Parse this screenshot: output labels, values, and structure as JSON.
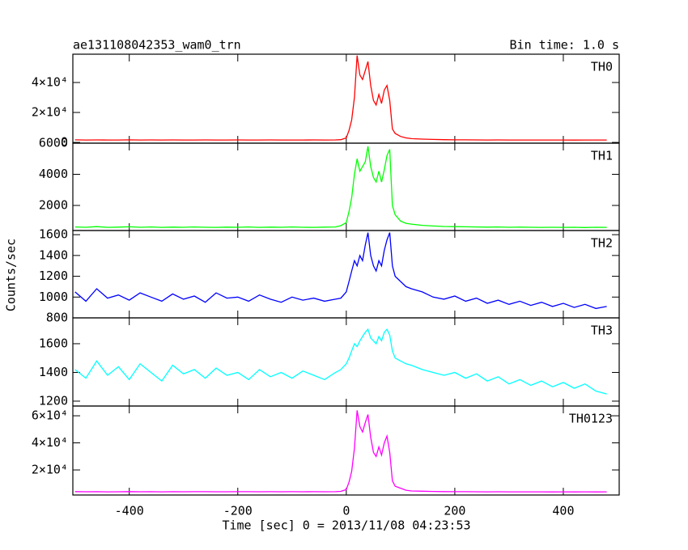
{
  "chart_data": [
    {
      "type": "line",
      "title": "ae131108042353_wam0_trn",
      "subtitle": "Bin time: 1.0 s",
      "x": [
        -500,
        -480,
        -460,
        -440,
        -420,
        -400,
        -380,
        -360,
        -340,
        -320,
        -300,
        -280,
        -260,
        -240,
        -220,
        -200,
        -180,
        -160,
        -140,
        -120,
        -100,
        -80,
        -60,
        -40,
        -20,
        -10,
        0,
        5,
        10,
        15,
        20,
        25,
        30,
        35,
        40,
        45,
        50,
        55,
        60,
        65,
        70,
        75,
        80,
        85,
        90,
        100,
        110,
        120,
        140,
        160,
        180,
        200,
        220,
        240,
        260,
        280,
        300,
        320,
        340,
        360,
        380,
        400,
        420,
        440,
        460,
        480
      ],
      "series": [
        {
          "name": "TH0",
          "color": "#ff0000",
          "values": [
            1700,
            1600,
            1650,
            1580,
            1620,
            1700,
            1600,
            1640,
            1580,
            1660,
            1600,
            1620,
            1650,
            1580,
            1600,
            1640,
            1620,
            1580,
            1650,
            1600,
            1620,
            1580,
            1640,
            1600,
            1650,
            1800,
            3000,
            8000,
            15000,
            30000,
            58000,
            45000,
            42000,
            48000,
            54000,
            38000,
            28000,
            25000,
            32000,
            26000,
            35000,
            38000,
            28000,
            9000,
            6000,
            4000,
            3000,
            2500,
            2200,
            2000,
            1800,
            1700,
            1700,
            1650,
            1600,
            1650,
            1600,
            1580,
            1620,
            1600,
            1580,
            1600,
            1550,
            1600,
            1580,
            1600
          ]
        }
      ],
      "xlim": [
        -504,
        503
      ],
      "ylim": [
        -500,
        58900
      ],
      "yticks": [
        0,
        {
          "value": 20000,
          "label": "2×10⁴"
        },
        {
          "value": 40000,
          "label": "4×10⁴"
        }
      ]
    },
    {
      "type": "line",
      "x": [
        -500,
        -480,
        -460,
        -440,
        -420,
        -400,
        -380,
        -360,
        -340,
        -320,
        -300,
        -280,
        -260,
        -240,
        -220,
        -200,
        -180,
        -160,
        -140,
        -120,
        -100,
        -80,
        -60,
        -40,
        -20,
        -10,
        0,
        5,
        10,
        15,
        20,
        25,
        30,
        35,
        40,
        45,
        50,
        55,
        60,
        65,
        70,
        75,
        80,
        85,
        90,
        100,
        110,
        120,
        140,
        160,
        180,
        200,
        220,
        240,
        260,
        280,
        300,
        320,
        340,
        360,
        380,
        400,
        420,
        440,
        460,
        480
      ],
      "series": [
        {
          "name": "TH1",
          "color": "#00ff00",
          "values": [
            620,
            600,
            640,
            590,
            610,
            630,
            600,
            620,
            590,
            610,
            600,
            620,
            600,
            590,
            610,
            600,
            620,
            590,
            610,
            600,
            620,
            600,
            590,
            610,
            620,
            700,
            900,
            1600,
            2500,
            4000,
            5000,
            4200,
            4500,
            4800,
            5800,
            4500,
            3800,
            3500,
            4200,
            3500,
            4300,
            5200,
            5600,
            2000,
            1400,
            1000,
            850,
            800,
            720,
            680,
            650,
            640,
            630,
            620,
            610,
            620,
            600,
            610,
            600,
            590,
            600,
            590,
            600,
            580,
            600,
            590
          ]
        }
      ],
      "xlim": [
        -504,
        503
      ],
      "ylim": [
        390,
        6000
      ],
      "yticks": [
        2000,
        4000,
        6000
      ]
    },
    {
      "type": "line",
      "ylabel": "Counts/sec",
      "x": [
        -500,
        -480,
        -460,
        -440,
        -420,
        -400,
        -380,
        -360,
        -340,
        -320,
        -300,
        -280,
        -260,
        -240,
        -220,
        -200,
        -180,
        -160,
        -140,
        -120,
        -100,
        -80,
        -60,
        -40,
        -20,
        -10,
        0,
        5,
        10,
        15,
        20,
        25,
        30,
        35,
        40,
        45,
        50,
        55,
        60,
        65,
        70,
        75,
        80,
        85,
        90,
        100,
        110,
        120,
        140,
        160,
        180,
        200,
        220,
        240,
        260,
        280,
        300,
        320,
        340,
        360,
        380,
        400,
        420,
        440,
        460,
        480
      ],
      "series": [
        {
          "name": "TH2",
          "color": "#0000ff",
          "values": [
            1050,
            960,
            1080,
            990,
            1020,
            970,
            1040,
            1000,
            960,
            1030,
            980,
            1010,
            950,
            1040,
            990,
            1000,
            960,
            1020,
            980,
            950,
            1000,
            970,
            990,
            960,
            980,
            990,
            1050,
            1150,
            1250,
            1350,
            1300,
            1400,
            1350,
            1500,
            1620,
            1400,
            1300,
            1250,
            1350,
            1300,
            1450,
            1550,
            1620,
            1300,
            1200,
            1150,
            1100,
            1080,
            1050,
            1000,
            980,
            1010,
            960,
            990,
            940,
            970,
            930,
            960,
            920,
            950,
            910,
            940,
            900,
            930,
            890,
            910
          ]
        }
      ],
      "xlim": [
        -504,
        503
      ],
      "ylim": [
        800,
        1640
      ],
      "yticks": [
        800,
        1000,
        1200,
        1400,
        1600
      ]
    },
    {
      "type": "line",
      "x": [
        -500,
        -480,
        -460,
        -440,
        -420,
        -400,
        -380,
        -360,
        -340,
        -320,
        -300,
        -280,
        -260,
        -240,
        -220,
        -200,
        -180,
        -160,
        -140,
        -120,
        -100,
        -80,
        -60,
        -40,
        -20,
        -10,
        0,
        5,
        10,
        15,
        20,
        25,
        30,
        35,
        40,
        45,
        50,
        55,
        60,
        65,
        70,
        75,
        80,
        85,
        90,
        100,
        110,
        120,
        140,
        160,
        180,
        200,
        220,
        240,
        260,
        280,
        300,
        320,
        340,
        360,
        380,
        400,
        420,
        440,
        460,
        480
      ],
      "series": [
        {
          "name": "TH3",
          "color": "#00ffff",
          "values": [
            1420,
            1360,
            1480,
            1380,
            1440,
            1350,
            1460,
            1400,
            1340,
            1450,
            1390,
            1420,
            1360,
            1430,
            1380,
            1400,
            1350,
            1420,
            1370,
            1400,
            1360,
            1410,
            1380,
            1350,
            1400,
            1420,
            1460,
            1500,
            1550,
            1600,
            1580,
            1620,
            1650,
            1680,
            1700,
            1640,
            1620,
            1600,
            1650,
            1620,
            1680,
            1700,
            1660,
            1550,
            1500,
            1480,
            1460,
            1450,
            1420,
            1400,
            1380,
            1400,
            1360,
            1390,
            1340,
            1370,
            1320,
            1350,
            1310,
            1340,
            1300,
            1330,
            1290,
            1320,
            1270,
            1250
          ]
        }
      ],
      "xlim": [
        -504,
        503
      ],
      "ylim": [
        1166,
        1780
      ],
      "yticks": [
        1200,
        1400,
        1600
      ]
    },
    {
      "type": "line",
      "xlabel": "Time [sec] 0 = 2013/11/08 04:23:53",
      "x": [
        -500,
        -480,
        -460,
        -440,
        -420,
        -400,
        -380,
        -360,
        -340,
        -320,
        -300,
        -280,
        -260,
        -240,
        -220,
        -200,
        -180,
        -160,
        -140,
        -120,
        -100,
        -80,
        -60,
        -40,
        -20,
        -10,
        0,
        5,
        10,
        15,
        20,
        25,
        30,
        35,
        40,
        45,
        50,
        55,
        60,
        65,
        70,
        75,
        80,
        85,
        90,
        100,
        110,
        120,
        140,
        160,
        180,
        200,
        220,
        240,
        260,
        280,
        300,
        320,
        340,
        360,
        380,
        400,
        420,
        440,
        460,
        480
      ],
      "series": [
        {
          "name": "TH0123",
          "color": "#ff00ff",
          "values": [
            4000,
            3900,
            3950,
            3850,
            3900,
            4000,
            3900,
            3950,
            3850,
            3950,
            3900,
            3920,
            3950,
            3880,
            3900,
            3940,
            3920,
            3880,
            3950,
            3900,
            3920,
            3880,
            3940,
            3900,
            3950,
            4200,
            5500,
            11000,
            19000,
            36000,
            64000,
            52000,
            48000,
            55000,
            61000,
            44000,
            33000,
            30000,
            37000,
            31000,
            40000,
            45000,
            33000,
            12000,
            8000,
            6500,
            5000,
            4500,
            4300,
            4100,
            4000,
            3950,
            3950,
            3900,
            3850,
            3900,
            3850,
            3800,
            3850,
            3800,
            3780,
            3800,
            3750,
            3800,
            3780,
            3800
          ]
        }
      ],
      "xlim": [
        -504,
        503
      ],
      "ylim": [
        1500,
        67200
      ],
      "xticks": [
        -400,
        -200,
        0,
        200,
        400
      ],
      "yticks": [
        {
          "value": 20000,
          "label": "2×10⁴"
        },
        {
          "value": 40000,
          "label": "4×10⁴"
        },
        {
          "value": 60000,
          "label": "6×10⁴"
        }
      ]
    }
  ]
}
